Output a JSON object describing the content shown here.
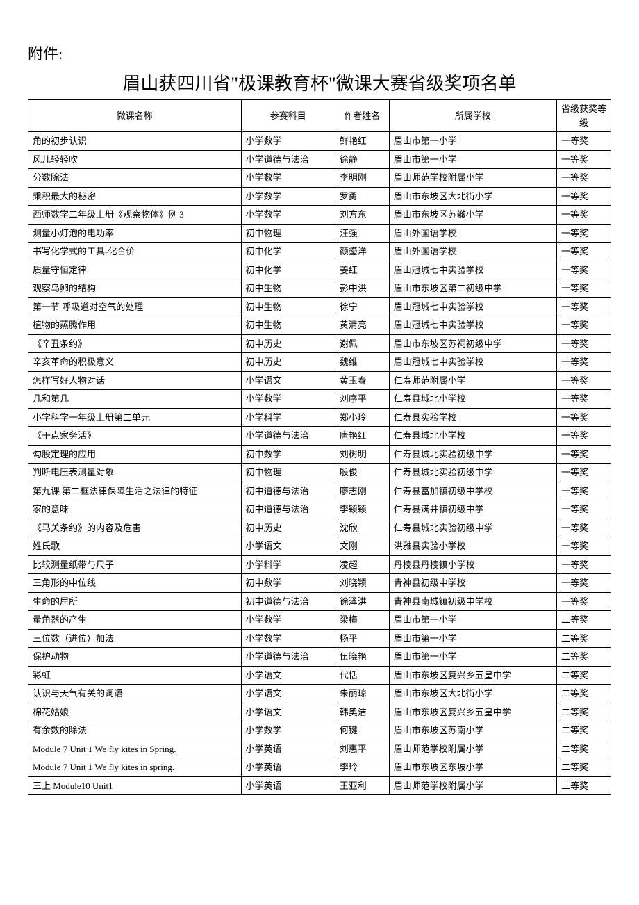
{
  "attachment_label": "附件:",
  "title": "眉山获四川省\"极课教育杯\"微课大赛省级奖项名单",
  "columns": [
    "微课名称",
    "参赛科目",
    "作者姓名",
    "所属学校",
    "省级获奖等级"
  ],
  "rows": [
    [
      "角的初步认识",
      "小学数学",
      "鲜艳红",
      "眉山市第一小学",
      "一等奖"
    ],
    [
      "风儿轻轻吹",
      "小学道德与法治",
      "徐静",
      "眉山市第一小学",
      "一等奖"
    ],
    [
      "分数除法",
      "小学数学",
      "李明刚",
      "眉山师范学校附属小学",
      "一等奖"
    ],
    [
      "乘积最大的秘密",
      "小学数学",
      "罗勇",
      "眉山市东坡区大北街小学",
      "一等奖"
    ],
    [
      "西师数学二年级上册《观察物体》例 3",
      "小学数学",
      "刘方东",
      "眉山市东坡区苏辙小学",
      "一等奖"
    ],
    [
      "测量小灯泡的电功率",
      "初中物理",
      "汪强",
      "眉山外国语学校",
      "一等奖"
    ],
    [
      "书写化学式的工具-化合价",
      "初中化学",
      "颜鎏洋",
      "眉山外国语学校",
      "一等奖"
    ],
    [
      "质量守恒定律",
      "初中化学",
      "姜红",
      "眉山冠城七中实验学校",
      "一等奖"
    ],
    [
      "观察鸟卵的结构",
      "初中生物",
      "彭中洪",
      "眉山市东坡区第二初级中学",
      "一等奖"
    ],
    [
      "第一节  呼吸道对空气的处理",
      "初中生物",
      "徐宁",
      "眉山冠城七中实验学校",
      "一等奖"
    ],
    [
      "植物的蒸腾作用",
      "初中生物",
      "黄清亮",
      "眉山冠城七中实验学校",
      "一等奖"
    ],
    [
      "《辛丑条约》",
      "初中历史",
      "谢佩",
      "眉山市东坡区苏祠初级中学",
      "一等奖"
    ],
    [
      "辛亥革命的积极意义",
      "初中历史",
      "魏维",
      "眉山冠城七中实验学校",
      "一等奖"
    ],
    [
      "怎样写好人物对话",
      "小学语文",
      "黄玉春",
      "仁寿师范附属小学",
      "一等奖"
    ],
    [
      "几和第几",
      "小学数学",
      "刘序平",
      "仁寿县城北小学校",
      "一等奖"
    ],
    [
      "小学科学一年级上册第二单元",
      "小学科学",
      "郑小玲",
      "仁寿县实验学校",
      "一等奖"
    ],
    [
      "《干点家务活》",
      "小学道德与法治",
      "唐艳红",
      "仁寿县城北小学校",
      "一等奖"
    ],
    [
      "勾股定理的应用",
      "初中数学",
      "刘树明",
      "仁寿县城北实验初级中学",
      "一等奖"
    ],
    [
      "判断电压表测量对象",
      "初中物理",
      "殷俊",
      "仁寿县城北实验初级中学",
      "一等奖"
    ],
    [
      "  第九课 第二框法律保障生活之法律的特征",
      "初中道德与法治",
      "廖志刚",
      "仁寿县富加镇初级中学校",
      "一等奖"
    ],
    [
      "家的意味",
      "初中道德与法治",
      "李颖颖",
      "仁寿县满井镇初级中学",
      "一等奖"
    ],
    [
      "《马关条约》的内容及危害",
      "初中历史",
      "沈欣",
      "仁寿县城北实验初级中学",
      "一等奖"
    ],
    [
      "姓氏歌",
      "小学语文",
      "文刚",
      "洪雅县实验小学校",
      "一等奖"
    ],
    [
      "比较测量纸带与尺子",
      "小学科学",
      "凌超",
      "丹棱县丹棱镇小学校",
      "一等奖"
    ],
    [
      "三角形的中位线",
      "初中数学",
      "刘晓颖",
      "青神县初级中学校",
      "一等奖"
    ],
    [
      "生命的居所",
      "初中道德与法治",
      "徐泽洪",
      "青神县南城镇初级中学校",
      "一等奖"
    ],
    [
      "量角器的产生",
      "小学数学",
      "梁梅",
      "眉山市第一小学",
      "二等奖"
    ],
    [
      "三位数（进位）加法",
      "小学数学",
      "杨平",
      "眉山市第一小学",
      "二等奖"
    ],
    [
      "保护动物",
      "小学道德与法治",
      "伍晓艳",
      "眉山市第一小学",
      "二等奖"
    ],
    [
      "彩虹",
      "小学语文",
      "代恬",
      "眉山市东坡区复兴乡五皇中学",
      "二等奖"
    ],
    [
      "认识与天气有关的词语",
      "小学语文",
      "朱丽琼",
      "眉山市东坡区大北街小学",
      "二等奖"
    ],
    [
      "棉花姑娘",
      "小学语文",
      "韩奥洁",
      "眉山市东坡区复兴乡五皇中学",
      "二等奖"
    ],
    [
      "有余数的除法",
      "小学数学",
      "何键",
      "眉山市东坡区苏南小学",
      "二等奖"
    ],
    [
      "Module 7 Unit 1 We fly kites in Spring.",
      "小学英语",
      "刘惠平",
      "眉山师范学校附属小学",
      "二等奖"
    ],
    [
      "Module 7 Unit 1 We fly kites in spring.",
      "小学英语",
      "李玲",
      "眉山市东坡区东坡小学",
      "二等奖"
    ],
    [
      "三上 Module10 Unit1",
      "小学英语",
      "王亚利",
      "眉山师范学校附属小学",
      "二等奖"
    ]
  ],
  "styles": {
    "background_color": "#ffffff",
    "text_color": "#000000",
    "border_color": "#000000",
    "title_fontsize": 26,
    "label_fontsize": 22,
    "cell_fontsize": 13
  }
}
